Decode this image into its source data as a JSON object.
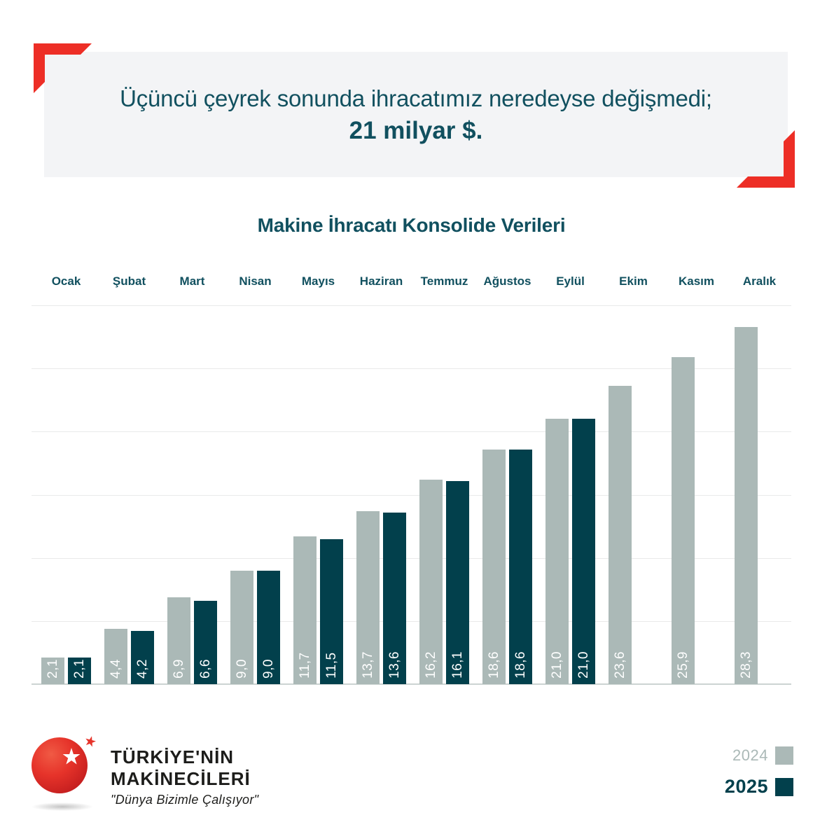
{
  "colors": {
    "accent_red": "#ed2e26",
    "dark_teal": "#11505f",
    "bar_2024": "#abb9b7",
    "bar_2025": "#02404c",
    "header_bg": "#f3f4f6",
    "gridline": "#e9eaea",
    "baseline": "#ccd4d2",
    "value_label": "#ffffff",
    "logo_text": "#1d1d1b"
  },
  "header": {
    "line1": "Üçüncü çeyrek sonunda ihracatımız neredeyse değişmedi;",
    "line2": "21 milyar $."
  },
  "chart_data": {
    "type": "bar",
    "title": "Makine İhracatı Konsolide Verileri",
    "categories": [
      "Ocak",
      "Şubat",
      "Mart",
      "Nisan",
      "Mayıs",
      "Haziran",
      "Temmuz",
      "Ağustos",
      "Eylül",
      "Ekim",
      "Kasım",
      "Aralık"
    ],
    "series": [
      {
        "name": "2024",
        "color": "#abb9b7",
        "emphasis": false,
        "values": [
          2.1,
          4.4,
          6.9,
          9.0,
          11.7,
          13.7,
          16.2,
          18.6,
          21.0,
          23.6,
          25.9,
          28.3
        ],
        "labels": [
          "2,1",
          "4,4",
          "6,9",
          "9,0",
          "11,7",
          "13,7",
          "16,2",
          "18,6",
          "21,0",
          "23,6",
          "25,9",
          "28,3"
        ]
      },
      {
        "name": "2025",
        "color": "#02404c",
        "emphasis": true,
        "values": [
          2.1,
          4.2,
          6.6,
          9.0,
          11.5,
          13.6,
          16.1,
          18.6,
          21.0,
          null,
          null,
          null
        ],
        "labels": [
          "2,1",
          "4,2",
          "6,6",
          "9,0",
          "11,5",
          "13,6",
          "16,1",
          "18,6",
          "21,0",
          null,
          null,
          null
        ]
      }
    ],
    "ylim": [
      0,
      30
    ],
    "gridline_step": 5,
    "grid": "horizontal",
    "legend_position": "bottom-right"
  },
  "logo": {
    "line1": "TÜRKİYE'NİN",
    "line2": "MAKİNECİLERİ",
    "tagline": "\"Dünya Bizimle Çalışıyor\""
  }
}
